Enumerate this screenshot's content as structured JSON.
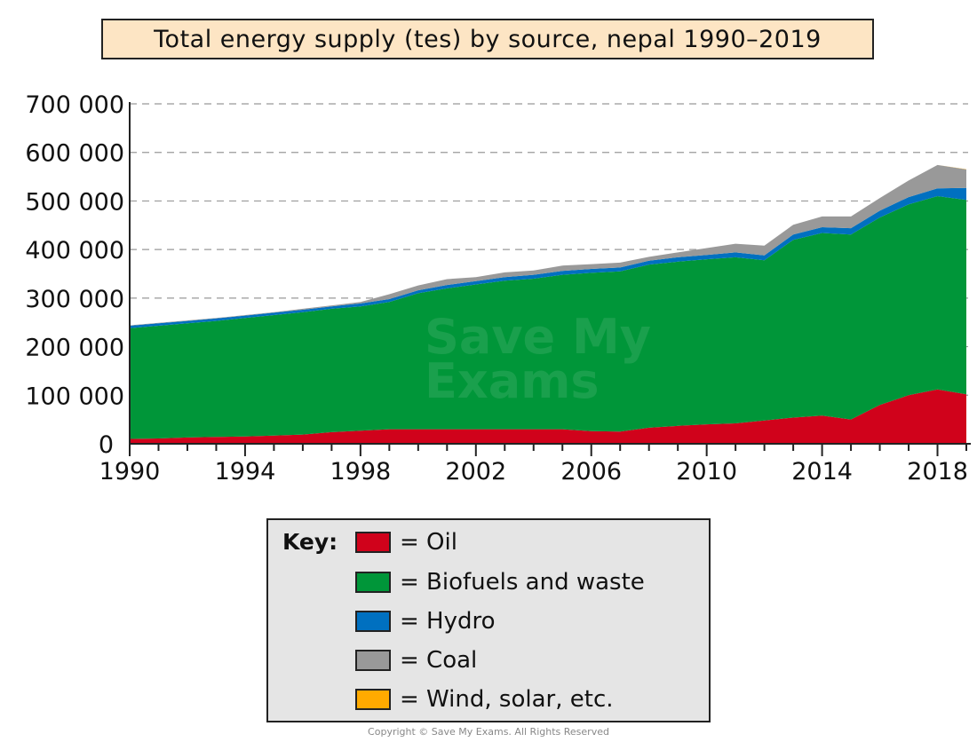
{
  "title": "Total energy supply (tes) by source, nepal 1990–2019",
  "watermark": {
    "line1": "Save My",
    "line2": "Exams"
  },
  "copyright": "Copyright © Save My Exams. All Rights Reserved",
  "key": {
    "label": "Key:",
    "items": [
      {
        "name": "= Oil",
        "color": "#d0021b"
      },
      {
        "name": "= Biofuels and waste",
        "color": "#009639"
      },
      {
        "name": "= Hydro",
        "color": "#0070c0"
      },
      {
        "name": "= Coal",
        "color": "#999999"
      },
      {
        "name": "= Wind, solar, etc.",
        "color": "#ffaa00"
      }
    ]
  },
  "chart_data": {
    "type": "area",
    "stacked": true,
    "title": "Total energy supply (tes) by source, nepal 1990–2019",
    "xlabel": "",
    "ylabel": "",
    "xlim": [
      1990,
      2019
    ],
    "ylim": [
      0,
      700000
    ],
    "yticks": [
      {
        "value": 0,
        "label": "0"
      },
      {
        "value": 100000,
        "label": "100 000"
      },
      {
        "value": 200000,
        "label": "200 000"
      },
      {
        "value": 300000,
        "label": "300 000"
      },
      {
        "value": 400000,
        "label": "400 000"
      },
      {
        "value": 500000,
        "label": "500 000"
      },
      {
        "value": 600000,
        "label": "600 000"
      },
      {
        "value": 700000,
        "label": "700 000"
      }
    ],
    "xticks": [
      {
        "value": 1990,
        "label": "1990"
      },
      {
        "value": 1994,
        "label": "1994"
      },
      {
        "value": 1998,
        "label": "1998"
      },
      {
        "value": 2002,
        "label": "2002"
      },
      {
        "value": 2006,
        "label": "2006"
      },
      {
        "value": 2010,
        "label": "2010"
      },
      {
        "value": 2014,
        "label": "2014"
      },
      {
        "value": 2018,
        "label": "2018"
      }
    ],
    "grid": "horizontal dashed",
    "x": [
      1990,
      1991,
      1992,
      1993,
      1994,
      1995,
      1996,
      1997,
      1998,
      1999,
      2000,
      2001,
      2002,
      2003,
      2004,
      2005,
      2006,
      2007,
      2008,
      2009,
      2010,
      2011,
      2012,
      2013,
      2014,
      2015,
      2016,
      2017,
      2018,
      2019
    ],
    "series": [
      {
        "name": "Oil",
        "color": "#d0021b",
        "values": [
          10000,
          11000,
          13000,
          14000,
          15000,
          17000,
          19000,
          24000,
          27000,
          30000,
          30000,
          30000,
          30000,
          30000,
          30000,
          30000,
          26000,
          25000,
          33000,
          37000,
          40000,
          42000,
          48000,
          54000,
          58000,
          50000,
          80000,
          100000,
          112000,
          102000
        ]
      },
      {
        "name": "Biofuels and waste",
        "color": "#009639",
        "values": [
          228000,
          232000,
          235000,
          239000,
          244000,
          248000,
          252000,
          254000,
          256000,
          262000,
          280000,
          290000,
          298000,
          306000,
          310000,
          318000,
          326000,
          330000,
          336000,
          338000,
          340000,
          342000,
          330000,
          366000,
          376000,
          381000,
          386000,
          393000,
          398000,
          400000
        ]
      },
      {
        "name": "Hydro",
        "color": "#0070c0",
        "values": [
          5000,
          5000,
          5000,
          5000,
          5000,
          5000,
          5000,
          5000,
          6000,
          6000,
          6000,
          7000,
          7000,
          7000,
          8000,
          8000,
          8000,
          8000,
          8000,
          9000,
          9000,
          10000,
          10000,
          11000,
          12000,
          13000,
          14000,
          15000,
          16000,
          25000
        ]
      },
      {
        "name": "Coal",
        "color": "#999999",
        "values": [
          1000,
          1000,
          1000,
          1000,
          1000,
          1000,
          2000,
          2000,
          3000,
          10000,
          10000,
          12000,
          8000,
          10000,
          9000,
          11000,
          10000,
          10000,
          8000,
          10000,
          14000,
          18000,
          20000,
          20000,
          22000,
          24000,
          26000,
          34000,
          48000,
          38000
        ]
      },
      {
        "name": "Wind, solar, etc.",
        "color": "#ffaa00",
        "values": [
          0,
          0,
          0,
          0,
          0,
          0,
          0,
          0,
          0,
          0,
          0,
          0,
          0,
          0,
          0,
          0,
          0,
          0,
          0,
          0,
          0,
          0,
          0,
          0,
          0,
          0,
          0,
          0,
          0,
          500
        ]
      }
    ]
  }
}
